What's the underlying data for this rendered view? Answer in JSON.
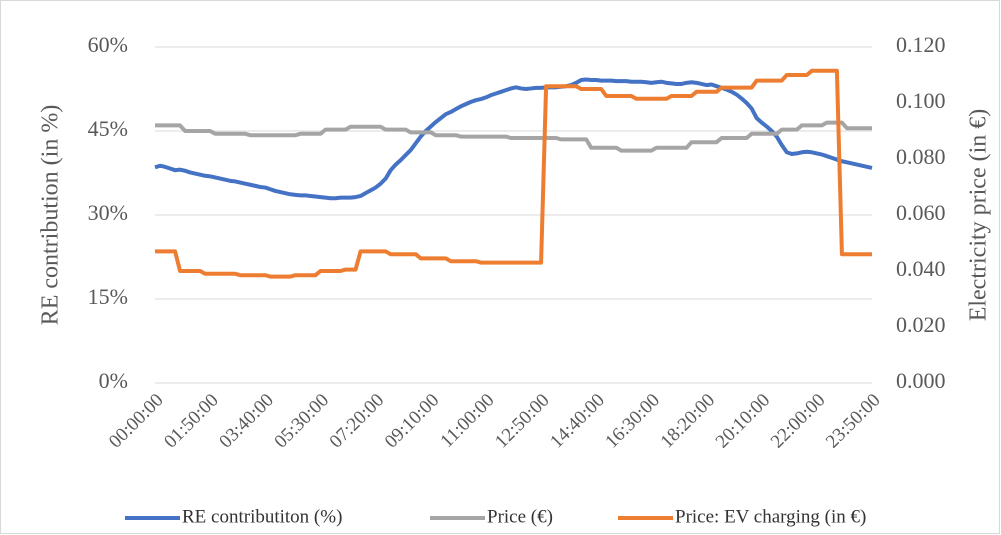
{
  "chart_data": {
    "type": "line",
    "y_label": "RE contribution (in %)",
    "y2_label": "Electricity price (in €)",
    "categories": [
      "00:00:00",
      null,
      null,
      null,
      null,
      null,
      null,
      null,
      null,
      null,
      null,
      "01:50:00",
      null,
      null,
      null,
      null,
      null,
      null,
      null,
      null,
      null,
      null,
      "03:40:00",
      null,
      null,
      null,
      null,
      null,
      null,
      null,
      null,
      null,
      null,
      "05:30:00",
      null,
      null,
      null,
      null,
      null,
      null,
      null,
      null,
      null,
      null,
      "07:20:00",
      null,
      null,
      null,
      null,
      null,
      null,
      null,
      null,
      null,
      null,
      "09:10:00",
      null,
      null,
      null,
      null,
      null,
      null,
      null,
      null,
      null,
      null,
      "11:00:00",
      null,
      null,
      null,
      null,
      null,
      null,
      null,
      null,
      null,
      null,
      "12:50:00",
      null,
      null,
      null,
      null,
      null,
      null,
      null,
      null,
      null,
      null,
      "14:40:00",
      null,
      null,
      null,
      null,
      null,
      null,
      null,
      null,
      null,
      null,
      "16:30:00",
      null,
      null,
      null,
      null,
      null,
      null,
      null,
      null,
      null,
      null,
      "18:20:00",
      null,
      null,
      null,
      null,
      null,
      null,
      null,
      null,
      null,
      null,
      "20:10:00",
      null,
      null,
      null,
      null,
      null,
      null,
      null,
      null,
      null,
      null,
      "22:00:00",
      null,
      null,
      null,
      null,
      null,
      null,
      null,
      null,
      null,
      null,
      "23:50:00"
    ],
    "series": [
      {
        "name": "RE contributiton (%)",
        "color": "#4472c4",
        "axis": "y",
        "values": [
          38.5,
          38.8,
          38.6,
          38.3,
          38.0,
          38.1,
          37.9,
          37.6,
          37.4,
          37.2,
          37.0,
          36.9,
          36.7,
          36.5,
          36.3,
          36.1,
          36.0,
          35.8,
          35.6,
          35.4,
          35.2,
          35.0,
          34.9,
          34.6,
          34.3,
          34.1,
          33.9,
          33.7,
          33.6,
          33.5,
          33.5,
          33.4,
          33.3,
          33.2,
          33.1,
          33.0,
          33.0,
          33.1,
          33.1,
          33.1,
          33.2,
          33.4,
          33.9,
          34.4,
          34.9,
          35.6,
          36.5,
          38.0,
          39.0,
          39.8,
          40.7,
          41.6,
          42.8,
          44.0,
          45.0,
          45.8,
          46.6,
          47.3,
          48.0,
          48.4,
          48.9,
          49.4,
          49.8,
          50.2,
          50.5,
          50.7,
          51.0,
          51.4,
          51.7,
          52.0,
          52.3,
          52.6,
          52.8,
          52.6,
          52.5,
          52.6,
          52.7,
          52.7,
          52.8,
          52.8,
          52.8,
          52.9,
          53.0,
          53.2,
          53.6,
          54.1,
          54.2,
          54.1,
          54.1,
          54.0,
          54.0,
          54.0,
          53.9,
          53.9,
          53.9,
          53.8,
          53.8,
          53.8,
          53.7,
          53.6,
          53.7,
          53.8,
          53.6,
          53.5,
          53.4,
          53.4,
          53.6,
          53.7,
          53.6,
          53.4,
          53.2,
          53.3,
          53.0,
          52.7,
          52.4,
          52.0,
          51.5,
          50.8,
          50.0,
          49.0,
          47.3,
          46.5,
          45.8,
          45.0,
          44.0,
          42.5,
          41.2,
          40.9,
          41.0,
          41.2,
          41.3,
          41.2,
          41.0,
          40.8,
          40.5,
          40.2,
          39.9,
          39.6,
          39.4,
          39.2,
          39.0,
          38.8,
          38.6,
          38.4
        ]
      },
      {
        "name": "Price (€)",
        "color": "#a5a5a5",
        "axis": "y2",
        "values": [
          0.092,
          0.092,
          0.092,
          0.092,
          0.092,
          0.092,
          0.09,
          0.09,
          0.09,
          0.09,
          0.09,
          0.09,
          0.089,
          0.089,
          0.089,
          0.089,
          0.089,
          0.089,
          0.089,
          0.0885,
          0.0885,
          0.0885,
          0.0885,
          0.0885,
          0.0885,
          0.0885,
          0.0885,
          0.0885,
          0.0885,
          0.089,
          0.089,
          0.089,
          0.089,
          0.089,
          0.0905,
          0.0905,
          0.0905,
          0.0905,
          0.0905,
          0.0915,
          0.0915,
          0.0915,
          0.0915,
          0.0915,
          0.0915,
          0.0915,
          0.0905,
          0.0905,
          0.0905,
          0.0905,
          0.0905,
          0.0895,
          0.0895,
          0.0895,
          0.0895,
          0.0895,
          0.0885,
          0.0885,
          0.0885,
          0.0885,
          0.0885,
          0.088,
          0.088,
          0.088,
          0.088,
          0.088,
          0.088,
          0.088,
          0.088,
          0.088,
          0.088,
          0.0875,
          0.0875,
          0.0875,
          0.0875,
          0.0875,
          0.0875,
          0.0875,
          0.0875,
          0.0875,
          0.0875,
          0.087,
          0.087,
          0.087,
          0.087,
          0.087,
          0.087,
          0.084,
          0.084,
          0.084,
          0.084,
          0.084,
          0.084,
          0.083,
          0.083,
          0.083,
          0.083,
          0.083,
          0.083,
          0.083,
          0.084,
          0.084,
          0.084,
          0.084,
          0.084,
          0.084,
          0.084,
          0.086,
          0.086,
          0.086,
          0.086,
          0.086,
          0.086,
          0.0875,
          0.0875,
          0.0875,
          0.0875,
          0.0875,
          0.0875,
          0.089,
          0.089,
          0.089,
          0.089,
          0.089,
          0.089,
          0.0905,
          0.0905,
          0.0905,
          0.0905,
          0.092,
          0.092,
          0.092,
          0.092,
          0.092,
          0.093,
          0.093,
          0.093,
          0.093,
          0.091,
          0.091,
          0.091,
          0.091,
          0.091,
          0.091
        ]
      },
      {
        "name": "Price: EV charging (in €)",
        "color": "#ed7d31",
        "axis": "y2",
        "values": [
          0.047,
          0.047,
          0.047,
          0.047,
          0.047,
          0.04,
          0.04,
          0.04,
          0.04,
          0.04,
          0.039,
          0.039,
          0.039,
          0.039,
          0.039,
          0.039,
          0.039,
          0.0385,
          0.0385,
          0.0385,
          0.0385,
          0.0385,
          0.0385,
          0.038,
          0.038,
          0.038,
          0.038,
          0.038,
          0.0385,
          0.0385,
          0.0385,
          0.0385,
          0.0385,
          0.04,
          0.04,
          0.04,
          0.04,
          0.04,
          0.0405,
          0.0405,
          0.0405,
          0.047,
          0.047,
          0.047,
          0.047,
          0.047,
          0.047,
          0.046,
          0.046,
          0.046,
          0.046,
          0.046,
          0.046,
          0.0445,
          0.0445,
          0.0445,
          0.0445,
          0.0445,
          0.0445,
          0.0435,
          0.0435,
          0.0435,
          0.0435,
          0.0435,
          0.0435,
          0.043,
          0.043,
          0.043,
          0.043,
          0.043,
          0.043,
          0.043,
          0.043,
          0.043,
          0.043,
          0.043,
          0.043,
          0.043,
          0.106,
          0.106,
          0.106,
          0.106,
          0.106,
          0.106,
          0.106,
          0.105,
          0.105,
          0.105,
          0.105,
          0.105,
          0.1025,
          0.1025,
          0.1025,
          0.1025,
          0.1025,
          0.1025,
          0.1015,
          0.1015,
          0.1015,
          0.1015,
          0.1015,
          0.1015,
          0.1015,
          0.1025,
          0.1025,
          0.1025,
          0.1025,
          0.1025,
          0.104,
          0.104,
          0.104,
          0.104,
          0.104,
          0.1055,
          0.1055,
          0.1055,
          0.1055,
          0.1055,
          0.1055,
          0.1055,
          0.108,
          0.108,
          0.108,
          0.108,
          0.108,
          0.108,
          0.11,
          0.11,
          0.11,
          0.11,
          0.11,
          0.1115,
          0.1115,
          0.1115,
          0.1115,
          0.1115,
          0.1115,
          0.046,
          0.046,
          0.046,
          0.046,
          0.046,
          0.046,
          0.046
        ]
      }
    ],
    "ylim": [
      0,
      60
    ],
    "yticks": [
      {
        "value": 0,
        "label": "0%"
      },
      {
        "value": 15,
        "label": "15%"
      },
      {
        "value": 30,
        "label": "30%"
      },
      {
        "value": 45,
        "label": "45%"
      },
      {
        "value": 60,
        "label": "60%"
      }
    ],
    "y2lim": [
      0,
      0.12
    ],
    "y2ticks": [
      {
        "value": 0,
        "label": "0.000"
      },
      {
        "value": 0.02,
        "label": "0.020"
      },
      {
        "value": 0.04,
        "label": "0.040"
      },
      {
        "value": 0.06,
        "label": "0.060"
      },
      {
        "value": 0.08,
        "label": "0.080"
      },
      {
        "value": 0.1,
        "label": "0.100"
      },
      {
        "value": 0.12,
        "label": "0.120"
      }
    ],
    "grid": true,
    "legend": "bottom"
  }
}
